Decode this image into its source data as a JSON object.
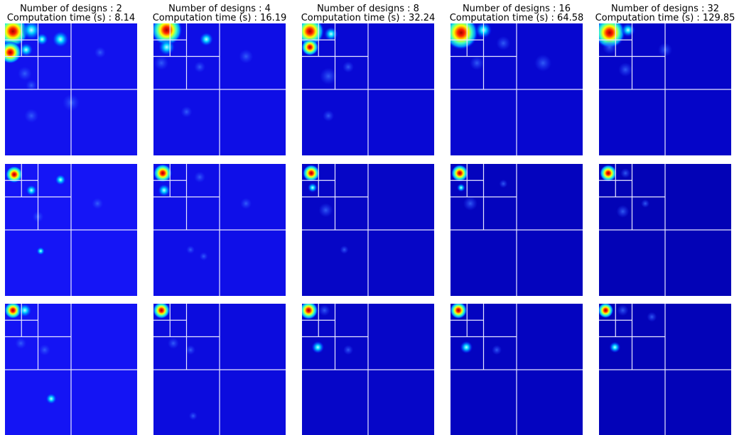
{
  "columns": [
    {
      "designs": "Number of designs : 2",
      "time": "Computation time (s) : 8.14"
    },
    {
      "designs": "Number of designs : 4",
      "time": "Computation time (s) : 16.19"
    },
    {
      "designs": "Number of designs : 8",
      "time": "Computation time (s) : 32.24"
    },
    {
      "designs": "Number of designs : 16",
      "time": "Computation time (s) : 64.58"
    },
    {
      "designs": "Number of designs : 32",
      "time": "Computation time (s) : 129.85"
    }
  ]
}
